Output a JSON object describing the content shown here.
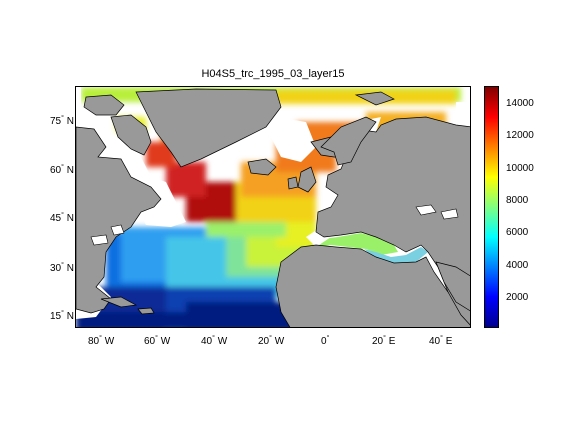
{
  "title": "H04S5_trc_1995_03_layer15",
  "y_ticks": [
    {
      "deg": "75",
      "hem": "N"
    },
    {
      "deg": "60",
      "hem": "N"
    },
    {
      "deg": "45",
      "hem": "N"
    },
    {
      "deg": "30",
      "hem": "N"
    },
    {
      "deg": "15",
      "hem": "N"
    }
  ],
  "x_ticks": [
    {
      "deg": "80",
      "hem": "W"
    },
    {
      "deg": "60",
      "hem": "W"
    },
    {
      "deg": "40",
      "hem": "W"
    },
    {
      "deg": "20",
      "hem": "W"
    },
    {
      "deg": "0",
      "hem": ""
    },
    {
      "deg": "20",
      "hem": "E"
    },
    {
      "deg": "40",
      "hem": "E"
    }
  ],
  "colorbar": {
    "labels": [
      "14000",
      "12000",
      "10000",
      "8000",
      "6000",
      "4000",
      "2000"
    ],
    "range": [
      0,
      15500
    ],
    "colormap": [
      "#00008f",
      "#0000ff",
      "#0080ff",
      "#00ffff",
      "#80ff80",
      "#ffff00",
      "#ff8000",
      "#ff0000",
      "#800000"
    ]
  },
  "colors": {
    "land": "#999999",
    "ocean_mask": "#ffffff"
  }
}
